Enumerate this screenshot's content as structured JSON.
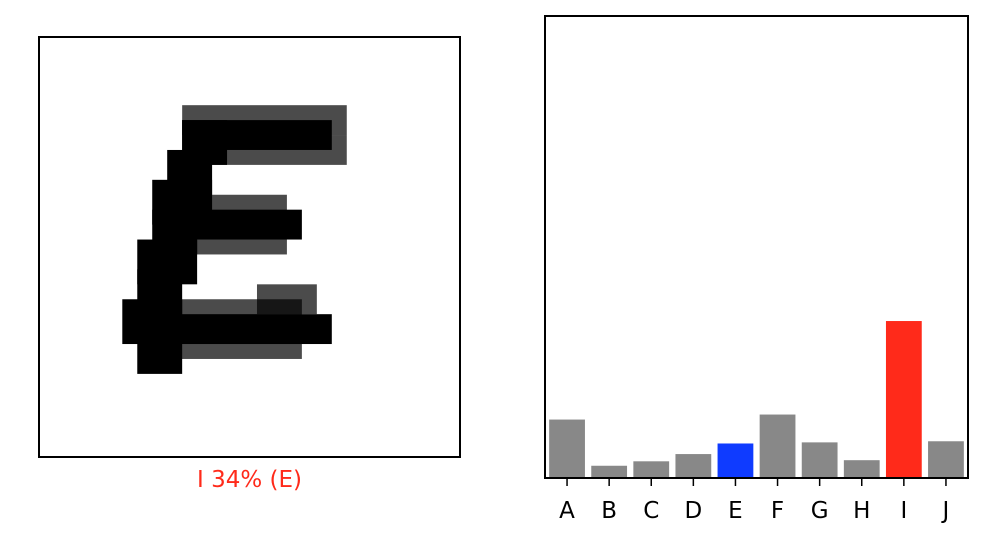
{
  "prediction": {
    "text": "I 34% (E)",
    "color": "#ff2a1a"
  },
  "chart_data": {
    "type": "bar",
    "categories": [
      "A",
      "B",
      "C",
      "D",
      "E",
      "F",
      "G",
      "H",
      "I",
      "J"
    ],
    "values": [
      10.5,
      2.2,
      3.0,
      4.3,
      6.2,
      11.4,
      6.4,
      3.2,
      28.2,
      6.6
    ],
    "ylim": [
      0,
      83
    ],
    "true_label": "E",
    "predicted_label": "I",
    "colors": {
      "default": "#888888",
      "true": "#0f3bff",
      "predicted": "#ff2a1a"
    }
  }
}
